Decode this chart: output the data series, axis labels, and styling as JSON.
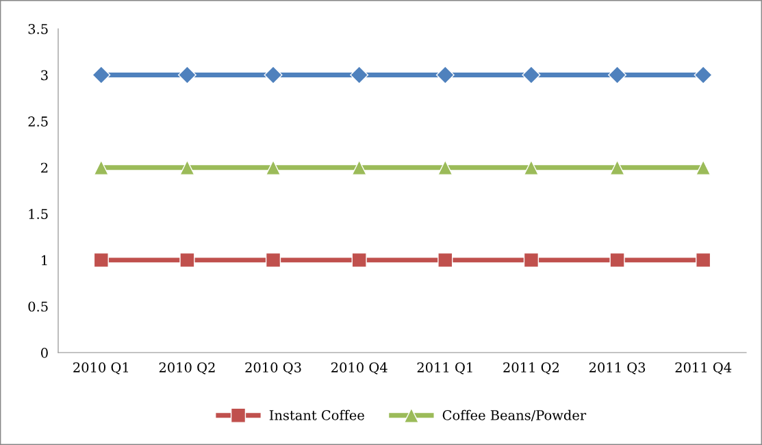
{
  "chart_data": {
    "type": "line",
    "categories": [
      "2010 Q1",
      "2010 Q2",
      "2010 Q3",
      "2010 Q4",
      "2011 Q1",
      "2011 Q2",
      "2011 Q3",
      "2011 Q4"
    ],
    "series": [
      {
        "color": "#4f81bd",
        "marker": "diamond",
        "values": [
          3,
          3,
          3,
          3,
          3,
          3,
          3,
          3
        ]
      },
      {
        "name": "Instant Coffee",
        "color": "#c0504d",
        "marker": "square",
        "values": [
          1,
          1,
          1,
          1,
          1,
          1,
          1,
          1
        ]
      },
      {
        "name": "Coffee Beans/Powder",
        "color": "#9bbb59",
        "marker": "triangle",
        "values": [
          2,
          2,
          2,
          2,
          2,
          2,
          2,
          2
        ]
      }
    ],
    "ylim": [
      0,
      3.5
    ],
    "yticks": [
      0,
      0.5,
      1,
      1.5,
      2,
      2.5,
      3,
      3.5
    ],
    "grid": false,
    "legend": "bottom",
    "line_style": "solid"
  }
}
